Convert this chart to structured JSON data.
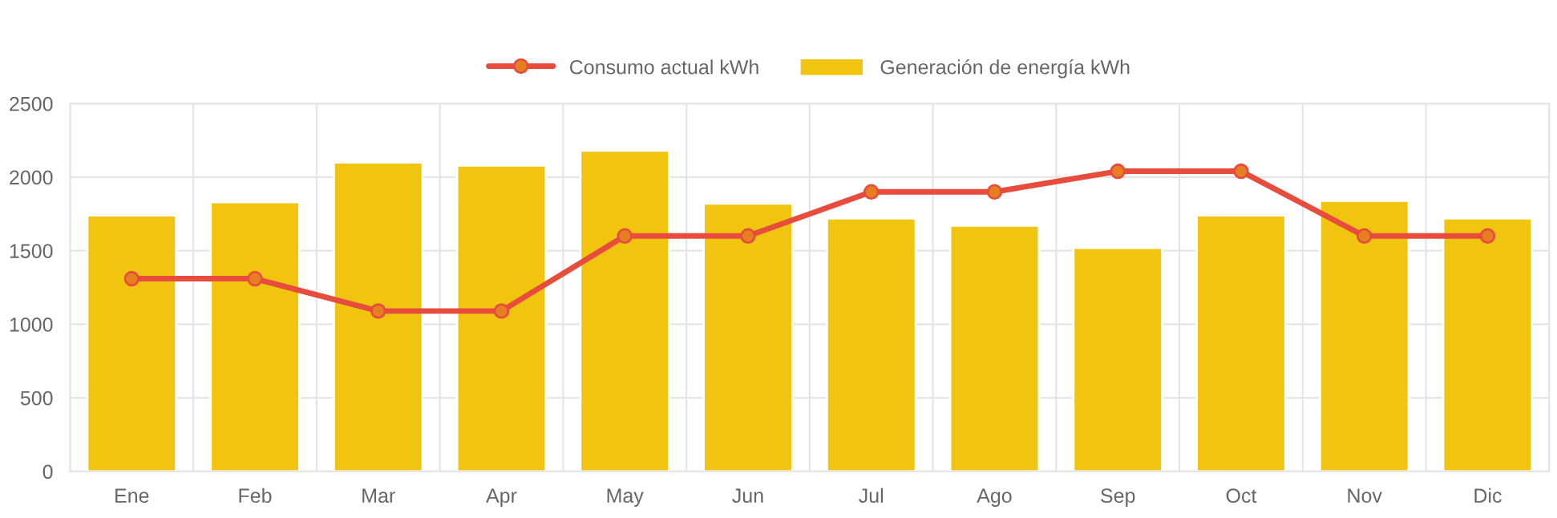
{
  "chart_data": {
    "type": "bar",
    "categories": [
      "Ene",
      "Feb",
      "Mar",
      "Apr",
      "May",
      "Jun",
      "Jul",
      "Ago",
      "Sep",
      "Oct",
      "Nov",
      "Dic"
    ],
    "series": [
      {
        "name": "Consumo actual kWh",
        "type": "line",
        "color": "#e74c3c",
        "values": [
          1310,
          1310,
          1090,
          1090,
          1600,
          1600,
          1900,
          1900,
          2040,
          2040,
          1600,
          1600
        ]
      },
      {
        "name": "Generación de energía kWh",
        "color": "#f1c40f",
        "values": [
          1740,
          1830,
          2100,
          2080,
          2180,
          1820,
          1720,
          1670,
          1520,
          1740,
          1840,
          1720
        ]
      }
    ],
    "ylim": [
      0,
      2500
    ],
    "yticks": [
      0,
      500,
      1000,
      1500,
      2000,
      2500
    ],
    "grid": true,
    "legend": "top",
    "marker": "circle",
    "line_style": "solid"
  }
}
